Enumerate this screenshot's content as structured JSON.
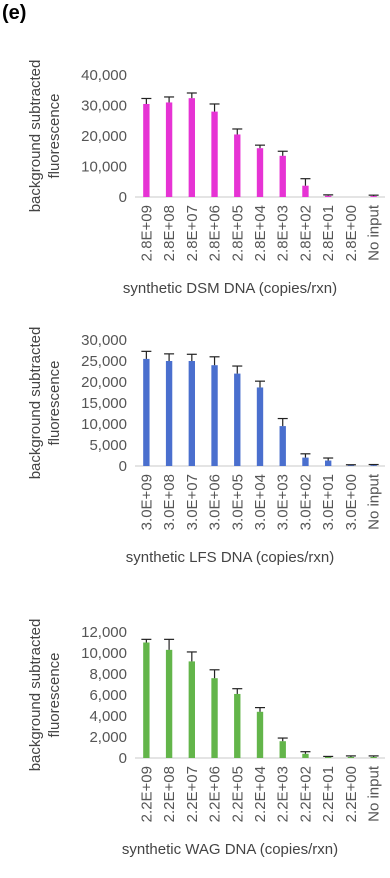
{
  "panel_label": "(e)",
  "chart_data": [
    {
      "type": "bar",
      "ylabel": "background subtracted fluorescence",
      "xlabel": "synthetic DSM DNA (copies/rxn)",
      "categories": [
        "2.8E+09",
        "2.8E+08",
        "2.8E+07",
        "2.8E+06",
        "2.8E+05",
        "2.8E+04",
        "2.8E+03",
        "2.8E+02",
        "2.8E+01",
        "2.8E+00",
        "No input"
      ],
      "values": [
        30500,
        31000,
        32400,
        28000,
        20500,
        16000,
        13500,
        3700,
        400,
        0,
        300
      ],
      "errors": [
        1800,
        1800,
        1700,
        2500,
        1800,
        1000,
        1500,
        2300,
        300,
        0,
        300
      ],
      "ylim": [
        0,
        40000
      ],
      "yticks": [
        "0",
        "10,000",
        "20,000",
        "30,000",
        "40,000"
      ],
      "color": "#e633d4"
    },
    {
      "type": "bar",
      "ylabel": "background subtracted fluorescence",
      "xlabel": "synthetic LFS DNA (copies/rxn)",
      "categories": [
        "3.0E+09",
        "3.0E+08",
        "3.0E+07",
        "3.0E+06",
        "3.0E+05",
        "3.0E+04",
        "3.0E+03",
        "3.0E+02",
        "3.0E+01",
        "3.0E+00",
        "No input"
      ],
      "values": [
        25500,
        25000,
        25000,
        24000,
        22000,
        18700,
        9500,
        2000,
        1300,
        200,
        200
      ],
      "errors": [
        1800,
        1700,
        1600,
        2000,
        1800,
        1500,
        1800,
        900,
        600,
        100,
        150
      ],
      "ylim": [
        0,
        30000
      ],
      "yticks": [
        "0",
        "5,000",
        "10,000",
        "15,000",
        "20,000",
        "25,000",
        "30,000"
      ],
      "color": "#4a6fce"
    },
    {
      "type": "bar",
      "ylabel": "background subtracted fluorescence",
      "xlabel": "synthetic WAG DNA (copies/rxn)",
      "categories": [
        "2.2E+09",
        "2.2E+08",
        "2.2E+07",
        "2.2E+06",
        "2.2E+05",
        "2.2E+04",
        "2.2E+03",
        "2.2E+02",
        "2.2E+01",
        "2.2E+00",
        "No input"
      ],
      "values": [
        11000,
        10300,
        9200,
        7600,
        6100,
        4400,
        1600,
        400,
        100,
        100,
        100
      ],
      "errors": [
        300,
        1000,
        900,
        800,
        500,
        400,
        300,
        200,
        50,
        100,
        100
      ],
      "ylim": [
        0,
        12000
      ],
      "yticks": [
        "0",
        "2,000",
        "4,000",
        "6,000",
        "8,000",
        "10,000",
        "12,000"
      ],
      "color": "#63b54a"
    }
  ]
}
